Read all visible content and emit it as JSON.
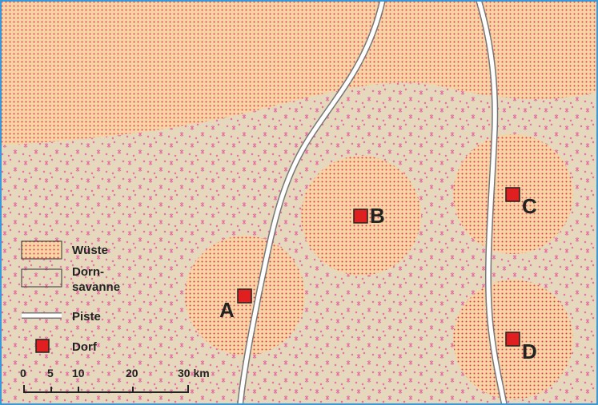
{
  "map": {
    "colors": {
      "frame": "#3a9ad9",
      "savanna_bg": "#e6d8bc",
      "savanna_star": "#e36aa3",
      "desert_bg": "#f6d4a4",
      "desert_dot": "#e03a52",
      "piste_fill": "#ffffff",
      "piste_edge": "#777777",
      "village": "#e02020"
    },
    "villages": [
      {
        "label": "A"
      },
      {
        "label": "B"
      },
      {
        "label": "C"
      },
      {
        "label": "D"
      }
    ],
    "legend": {
      "desert": "Wüste",
      "savanna_line1": "Dorn-",
      "savanna_line2": "savanne",
      "piste": "Piste",
      "village": "Dorf"
    },
    "scale": {
      "ticks": [
        "0",
        "5",
        "10",
        "20",
        "30 km"
      ]
    }
  }
}
